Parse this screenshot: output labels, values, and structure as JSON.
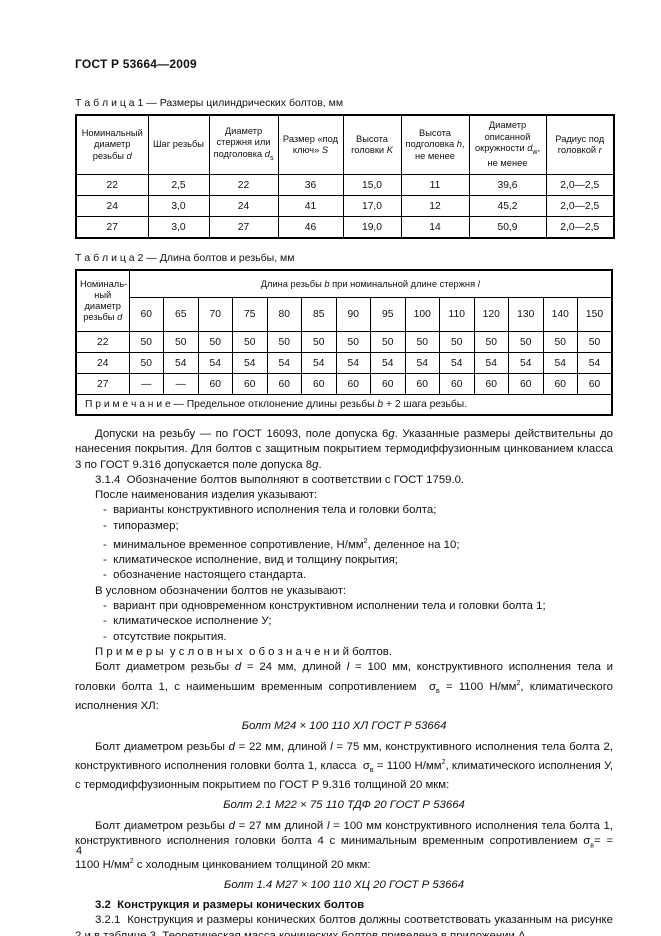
{
  "page": {
    "standard_code": "ГОСТ Р 53664—2009",
    "page_number": "4"
  },
  "table1": {
    "caption": "Т а б л и ц а  1 — Размеры цилиндрических болтов, мм",
    "headers": [
      "Номинальный диаметр резьбы <i>d</i>",
      "Шаг резьбы",
      "Диаметр стержня или подголовка <i>d</i><sub>s</sub>",
      "Размер «под ключ» <i>S</i>",
      "Высота головки <i>K</i>",
      "Высота подголовка <i>h</i>, не менее",
      "Диаметр описанной окружности <i>d</i><sub>w</sub>, не менее",
      "Радиус под головкой <i>r</i>"
    ],
    "rows": [
      [
        "22",
        "2,5",
        "22",
        "36",
        "15,0",
        "11",
        "39,6",
        "2,0—2,5"
      ],
      [
        "24",
        "3,0",
        "24",
        "41",
        "17,0",
        "12",
        "45,2",
        "2,0—2,5"
      ],
      [
        "27",
        "3,0",
        "27",
        "46",
        "19,0",
        "14",
        "50,9",
        "2,0—2,5"
      ]
    ]
  },
  "table2": {
    "caption": "Т а б л и ц а  2 — Длина болтов и резьбы, мм",
    "corner_header": "Номиналь-<br>ный диаметр резьбы <i>d</i>",
    "span_header": "Длина резьбы <i>b</i> при номинальной длине стержня <i>l</i>",
    "length_columns": [
      "60",
      "65",
      "70",
      "75",
      "80",
      "85",
      "90",
      "95",
      "100",
      "110",
      "120",
      "130",
      "140",
      "150"
    ],
    "rows": [
      {
        "d": "22",
        "values": [
          "50",
          "50",
          "50",
          "50",
          "50",
          "50",
          "50",
          "50",
          "50",
          "50",
          "50",
          "50",
          "50",
          "50"
        ]
      },
      {
        "d": "24",
        "values": [
          "50",
          "54",
          "54",
          "54",
          "54",
          "54",
          "54",
          "54",
          "54",
          "54",
          "54",
          "54",
          "54",
          "54"
        ]
      },
      {
        "d": "27",
        "values": [
          "—",
          "—",
          "60",
          "60",
          "60",
          "60",
          "60",
          "60",
          "60",
          "60",
          "60",
          "60",
          "60",
          "60"
        ]
      }
    ],
    "note": "П р и м е ч а н и е — Предельное отклонение длины резьбы <i>b</i> + 2 шага резьбы."
  },
  "body": {
    "paragraphs": [
      {
        "html": "Допуски на резьбу — по ГОСТ 16093, поле допуска 6<i>g</i>. Указанные размеры действительны до нанесения покрытия. Для болтов с защитным покрытием термодиффузионным цинкованием класса 3 по ГОСТ 9.316 допускается поле допуска 8<i>g</i>."
      },
      {
        "html": "3.1.4&nbsp; Обозначение болтов выполняют в соответствии с ГОСТ 1759.0."
      },
      {
        "html": "После наименования изделия указывают:"
      },
      {
        "html": "-&nbsp; варианты конструктивного исполнения тела и головки болта;"
      },
      {
        "html": "-&nbsp; типоразмер;"
      },
      {
        "html": "-&nbsp; минимальное временное сопротивление, Н/мм<sup>2</sup>, деленное на 10;"
      },
      {
        "html": "-&nbsp; климатическое исполнение, вид и толщину покрытия;"
      },
      {
        "html": "-&nbsp; обозначение настоящего стандарта."
      },
      {
        "html": "В условном обозначении болтов не указывают:"
      },
      {
        "html": "-&nbsp; вариант при одновременном конструктивном исполнении тела и головки болта 1;"
      },
      {
        "html": "-&nbsp; климатическое исполнение У;"
      },
      {
        "html": "-&nbsp; отсутствие покрытия."
      },
      {
        "html": "П р и м е р ы &nbsp;у с л о в н ы х &nbsp;о б о з н а ч е н и й болтов."
      },
      {
        "html": "Болт диаметром резьбы <i>d</i> = 24 мм, длиной <i>l</i> = 100 мм, конструктивного исполнения тела и головки болта 1, с наименьшим временным сопротивлением &nbsp;σ<sub>в</sub> = 1100 Н/мм<sup>2</sup>, климатического исполнения ХЛ:"
      },
      {
        "html": "Болт М24 × 100 110 ХЛ ГОСТ Р 53664"
      },
      {
        "html": "Болт диаметром резьбы <i>d</i> = 22 мм, длиной <i>l</i> = 75 мм, конструктивного исполнения тела болта 2, конструктивного исполнения головки болта 1, класса &nbsp;σ<sub>в</sub> = 1100 Н/мм<sup>2</sup>, климатического исполнения У, с термодиффузионным покрытием по ГОСТ Р 9.316 толщиной 20 мкм:"
      },
      {
        "html": "Болт 2.1 М22 × 75 110 ТДФ 20 ГОСТ Р 53664"
      },
      {
        "html": "Болт диаметром резьбы <i>d</i> = 27 мм длиной <i>l</i> = 100 мм конструктивного исполнения тела болта 1, конструктивного исполнения головки болта 4 с минимальным временным сопротивлением σ<sub>в</sub>= = 1100 Н/мм<sup>2</sup> с холодным цинкованием толщиной 20 мкм:"
      },
      {
        "html": "Болт 1.4 М27 × 100 110 ХЦ 20 ГОСТ Р 53664"
      },
      {
        "html": "3.2&nbsp; Конструкция и размеры конических болтов"
      },
      {
        "html": "3.2.1&nbsp; Конструкция и размеры конических болтов должны соответствовать указанным на рисунке 2 и в таблице 3. Теоретическая масса конических болтов приведена в приложении А."
      }
    ]
  }
}
